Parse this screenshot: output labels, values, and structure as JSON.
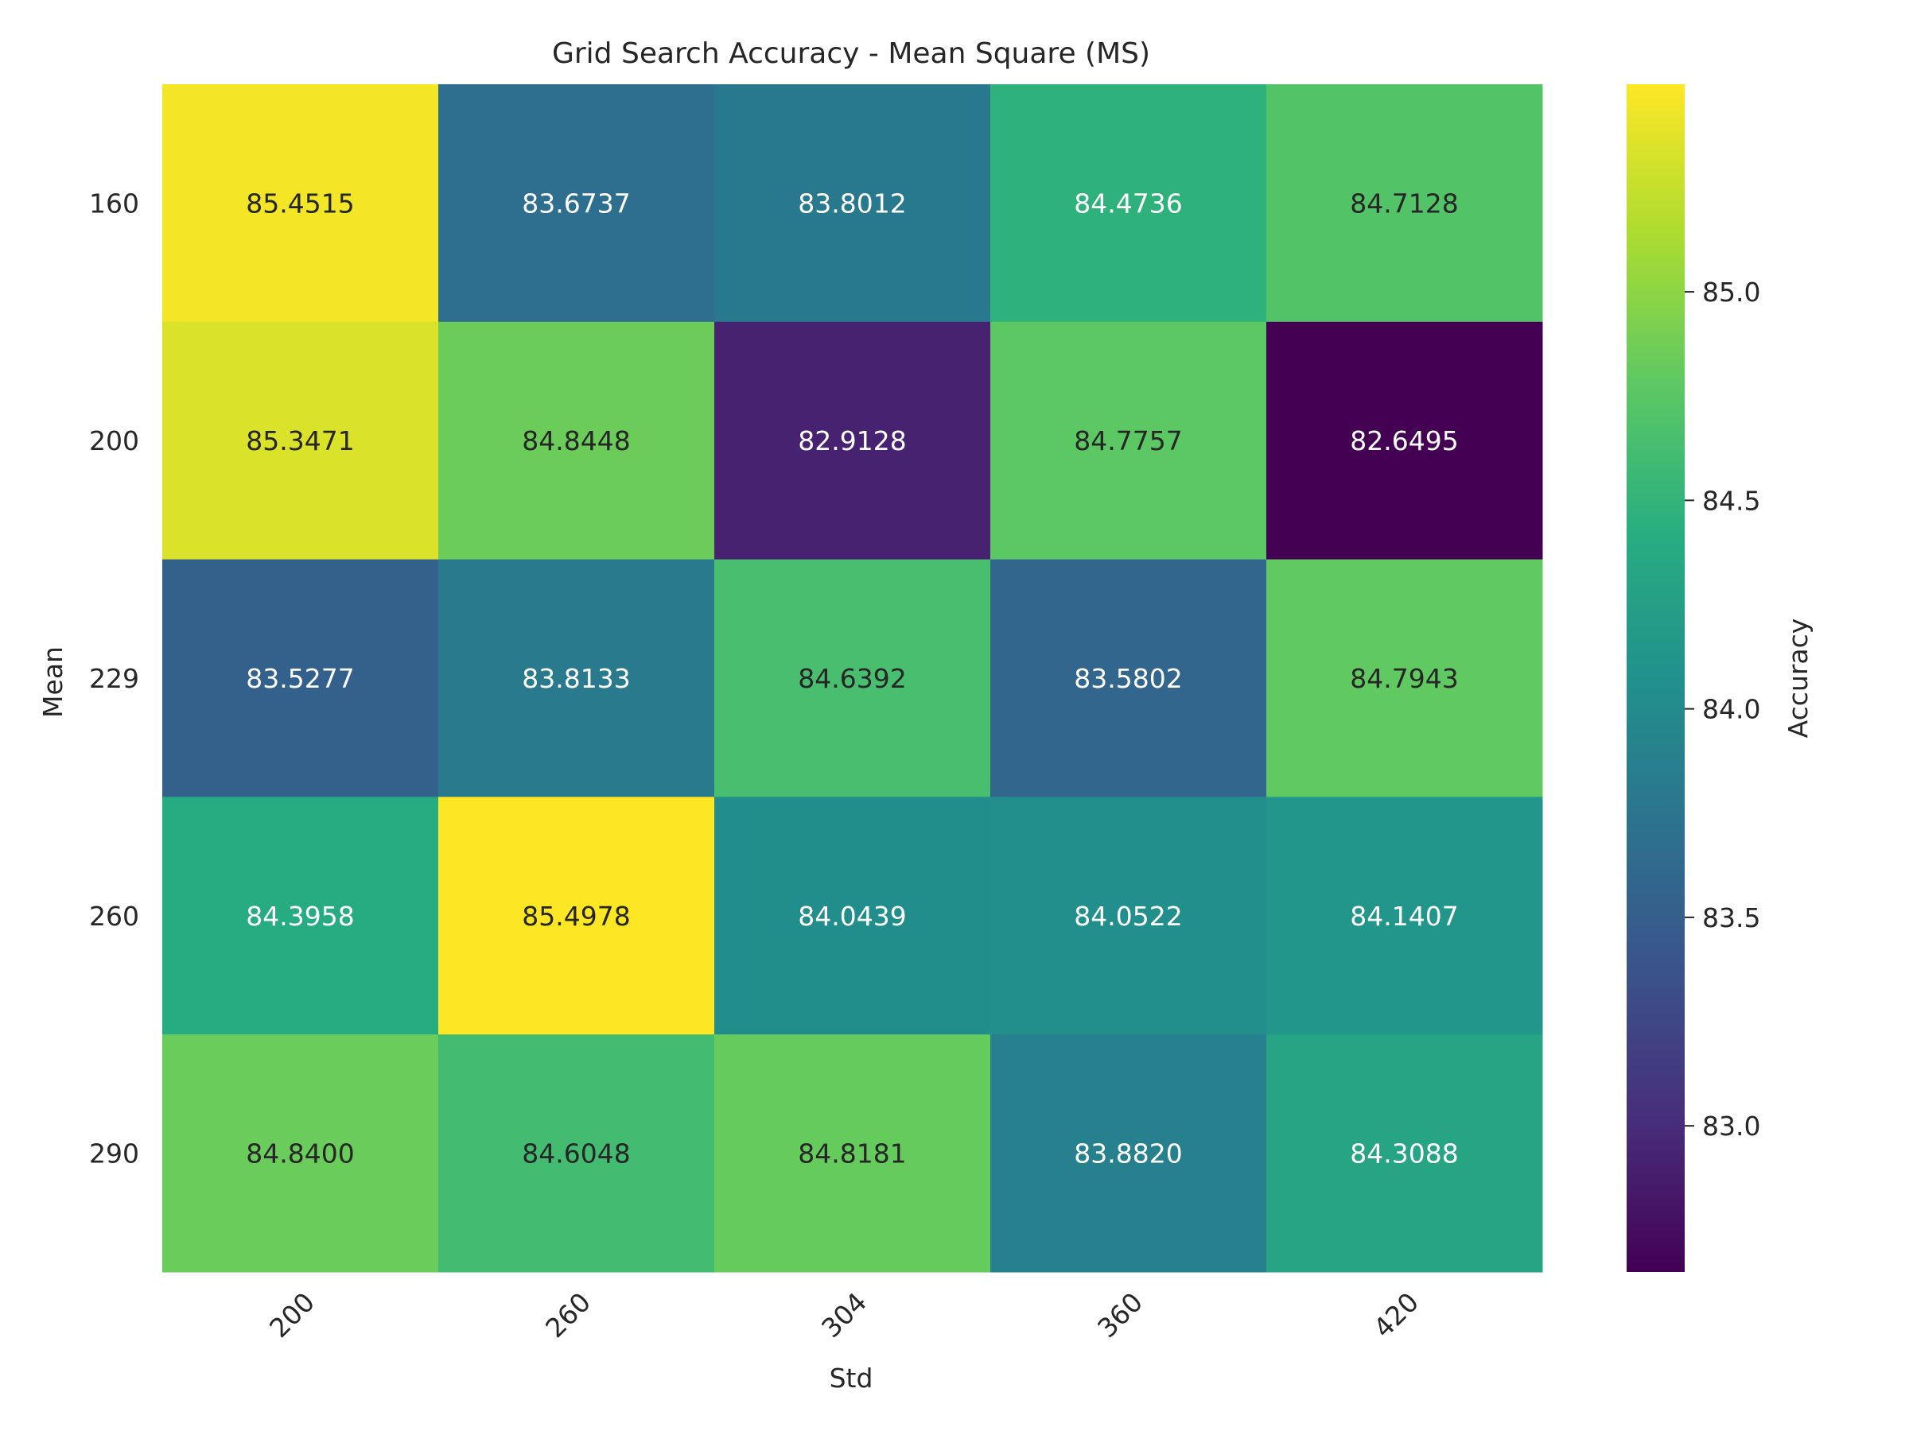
{
  "chart_data": {
    "type": "heatmap",
    "title": "Grid Search Accuracy - Mean Square (MS)",
    "xlabel": "Std",
    "ylabel": "Mean",
    "x_categories": [
      "200",
      "260",
      "304",
      "360",
      "420"
    ],
    "y_categories": [
      "160",
      "200",
      "229",
      "260",
      "290"
    ],
    "values": [
      [
        85.4515,
        83.6737,
        83.8012,
        84.4736,
        84.7128
      ],
      [
        85.3471,
        84.8448,
        82.9128,
        84.7757,
        82.6495
      ],
      [
        83.5277,
        83.8133,
        84.6392,
        83.5802,
        84.7943
      ],
      [
        84.3958,
        85.4978,
        84.0439,
        84.0522,
        84.1407
      ],
      [
        84.84,
        84.6048,
        84.8181,
        83.882,
        84.3088
      ]
    ],
    "colorbar": {
      "label": "Accuracy",
      "colormap": "viridis",
      "vmin": 82.6495,
      "vmax": 85.4978,
      "ticks": [
        83.0,
        83.5,
        84.0,
        84.5,
        85.0
      ],
      "tick_labels": [
        "83.0",
        "83.5",
        "84.0",
        "84.5",
        "85.0"
      ]
    },
    "grid": false
  }
}
